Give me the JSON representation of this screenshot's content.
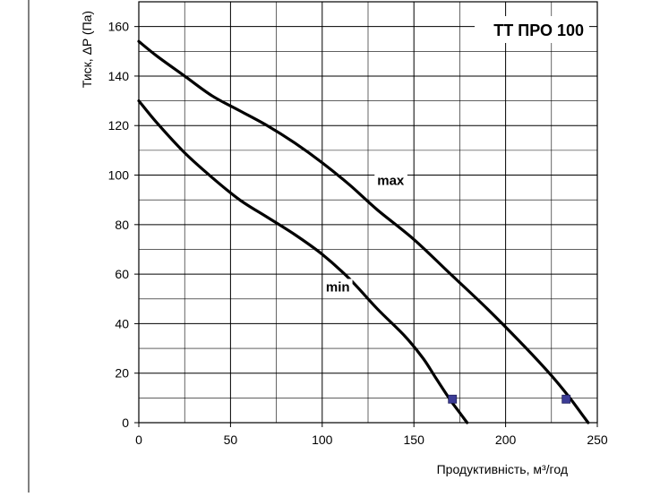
{
  "chart_data": {
    "type": "line",
    "title": "ТТ ПРО 100",
    "xlabel": "Продуктивність, м³/год",
    "ylabel": "Тиск, ΔP (Па)",
    "xlim": [
      0,
      250
    ],
    "ylim": [
      0,
      170
    ],
    "x_ticks": [
      0,
      50,
      100,
      150,
      200,
      250
    ],
    "y_ticks": [
      0,
      20,
      40,
      60,
      80,
      100,
      120,
      140,
      160
    ],
    "grid": true,
    "series": [
      {
        "name": "max",
        "color": "#000000",
        "points": [
          [
            0,
            154
          ],
          [
            10,
            148
          ],
          [
            25,
            140
          ],
          [
            40,
            132
          ],
          [
            55,
            126
          ],
          [
            70,
            120
          ],
          [
            85,
            113
          ],
          [
            100,
            105
          ],
          [
            115,
            96
          ],
          [
            130,
            86
          ],
          [
            150,
            74
          ],
          [
            170,
            60
          ],
          [
            190,
            46
          ],
          [
            210,
            31
          ],
          [
            225,
            19
          ],
          [
            235,
            10
          ],
          [
            242,
            3
          ],
          [
            245,
            0
          ]
        ],
        "marker": [
          233,
          9.5
        ]
      },
      {
        "name": "min",
        "color": "#000000",
        "points": [
          [
            0,
            130
          ],
          [
            10,
            121
          ],
          [
            25,
            109
          ],
          [
            40,
            99
          ],
          [
            55,
            90
          ],
          [
            70,
            83
          ],
          [
            85,
            76
          ],
          [
            100,
            68
          ],
          [
            115,
            58
          ],
          [
            130,
            46
          ],
          [
            145,
            35
          ],
          [
            155,
            26
          ],
          [
            162,
            18
          ],
          [
            170,
            9
          ],
          [
            175,
            4
          ],
          [
            179,
            0
          ]
        ],
        "marker": [
          171,
          9.5
        ]
      }
    ],
    "marker_color": "#3c3c96"
  }
}
